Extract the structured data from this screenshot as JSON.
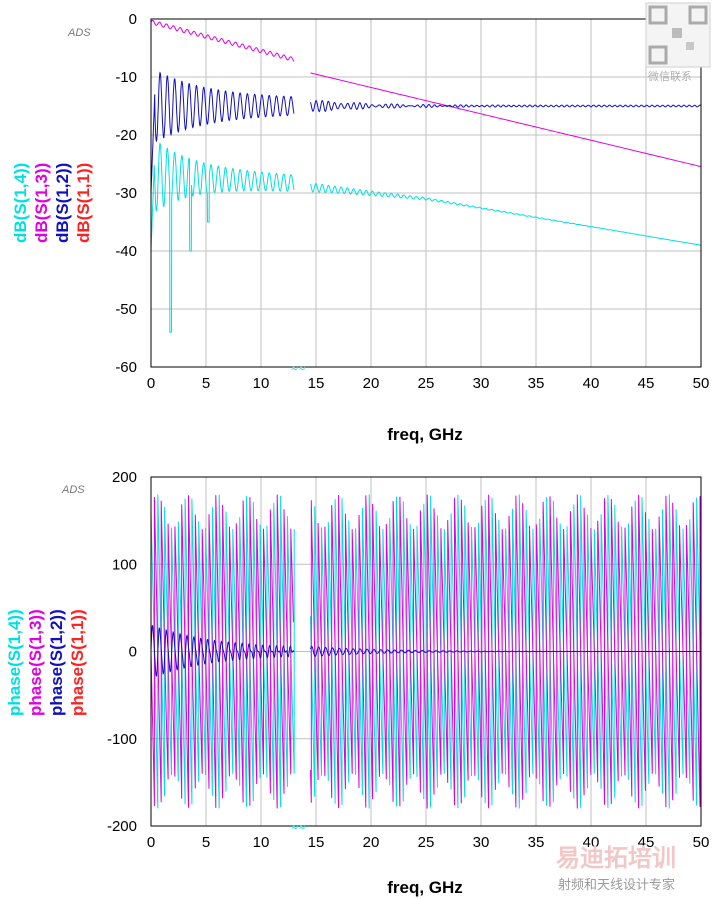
{
  "colors": {
    "s11": "#ff2020",
    "s12": "#1010c0",
    "s13": "#e000e0",
    "s14": "#00e0e0",
    "grid": "#c0c0c0"
  },
  "watermark": {
    "top_caption": "微信联系",
    "bottom_brand": "易迪拓培训",
    "bottom_caption": "射频和天线设计专家"
  },
  "chart_data": [
    {
      "type": "line",
      "tag": "ADS",
      "xlabel": "freq, GHz",
      "ylabel_series": [
        "dB(S(1,4))",
        "dB(S(1,3))",
        "dB(S(1,2))",
        "dB(S(1,1))"
      ],
      "xlim": [
        0,
        50
      ],
      "ylim": [
        -60,
        0
      ],
      "x_ticks": [
        "0",
        "5",
        "10",
        "15",
        "20",
        "25",
        "30",
        "35",
        "40",
        "45",
        "50"
      ],
      "y_ticks": [
        "0",
        "-10",
        "-20",
        "-30",
        "-40",
        "-50",
        "-60"
      ],
      "series": [
        {
          "name": "dB(S(1,3))",
          "color_key": "s13",
          "description_points": [
            [
              0,
              -0.5
            ],
            [
              13,
              -8.5
            ],
            [
              14.5,
              -9.5
            ],
            [
              50,
              -25.5
            ]
          ]
        },
        {
          "name": "dB(S(1,2))",
          "color_key": "s12",
          "description_points": [
            [
              0,
              -30
            ],
            [
              0.5,
              -12
            ],
            [
              2,
              -18
            ],
            [
              13,
              -15
            ],
            [
              14.5,
              -15
            ],
            [
              26,
              -15
            ],
            [
              50,
              -15
            ]
          ]
        },
        {
          "name": "dB(S(1,4))",
          "color_key": "s14",
          "description_points": [
            [
              0,
              -40
            ],
            [
              0.5,
              -23
            ],
            [
              1.8,
              -54
            ],
            [
              13,
              -29
            ],
            [
              14.5,
              -29
            ],
            [
              25,
              -31
            ],
            [
              50,
              -39
            ]
          ]
        }
      ]
    },
    {
      "type": "line",
      "tag": "ADS",
      "xlabel": "freq, GHz",
      "ylabel_series": [
        "phase(S(1,4))",
        "phase(S(1,3))",
        "phase(S(1,2))",
        "phase(S(1,1))"
      ],
      "xlim": [
        0,
        50
      ],
      "ylim": [
        -200,
        200
      ],
      "x_ticks": [
        "0",
        "5",
        "10",
        "15",
        "20",
        "25",
        "30",
        "35",
        "40",
        "45",
        "50"
      ],
      "y_ticks": [
        "200",
        "100",
        "0",
        "-100",
        "-200"
      ],
      "series": [
        {
          "name": "phase(S(1,4))",
          "color_key": "s14",
          "range": [
            -180,
            180
          ]
        },
        {
          "name": "phase(S(1,3))",
          "color_key": "s13",
          "range": [
            -180,
            180
          ]
        },
        {
          "name": "phase(S(1,2))",
          "color_key": "s12",
          "range": [
            -30,
            30
          ]
        }
      ]
    }
  ]
}
